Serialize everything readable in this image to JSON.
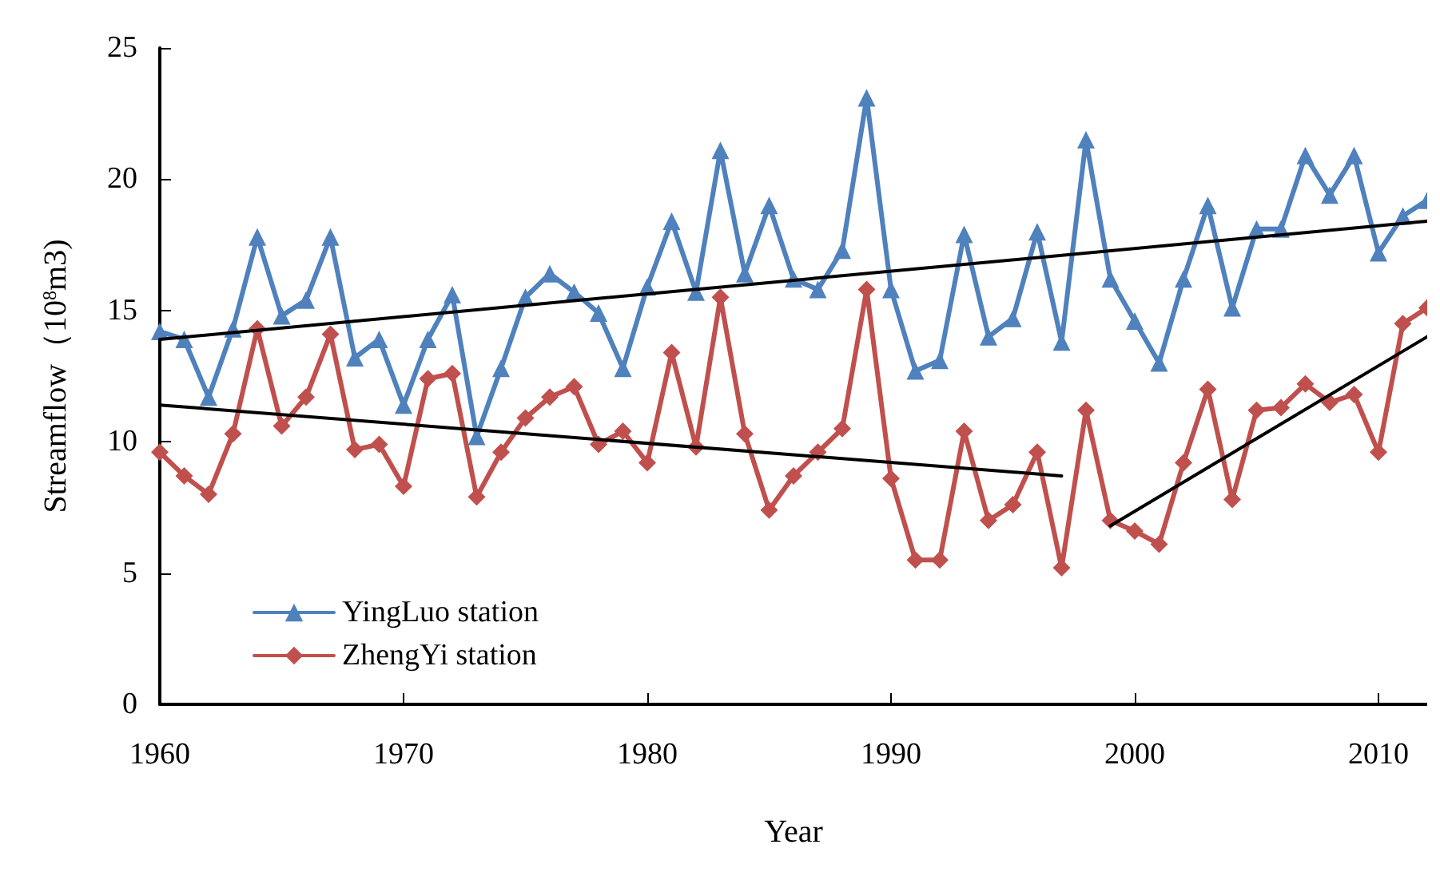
{
  "chart_data": {
    "type": "line",
    "xlabel": "Year",
    "ylabel": "Streamflow（10$^{8}$m3)",
    "x": [
      1960,
      1961,
      1962,
      1963,
      1964,
      1965,
      1966,
      1967,
      1968,
      1969,
      1970,
      1971,
      1972,
      1973,
      1974,
      1975,
      1976,
      1977,
      1978,
      1979,
      1980,
      1981,
      1982,
      1983,
      1984,
      1985,
      1986,
      1987,
      1988,
      1989,
      1990,
      1991,
      1992,
      1993,
      1994,
      1995,
      1996,
      1997,
      1998,
      1999,
      2000,
      2001,
      2002,
      2003,
      2004,
      2005,
      2006,
      2007,
      2008,
      2009,
      2010,
      2011,
      2012
    ],
    "series": [
      {
        "name": "YingLuo station",
        "color": "#4f81bd",
        "marker": "triangle",
        "values": [
          14.2,
          13.9,
          11.7,
          14.3,
          17.8,
          14.8,
          15.4,
          17.8,
          13.2,
          13.9,
          11.4,
          13.9,
          15.6,
          10.2,
          12.8,
          15.5,
          16.4,
          15.7,
          14.9,
          12.8,
          15.9,
          18.4,
          15.7,
          21.1,
          16.4,
          19.0,
          16.2,
          15.8,
          17.3,
          23.1,
          15.8,
          12.7,
          13.1,
          17.9,
          14.0,
          14.7,
          18.0,
          13.8,
          21.5,
          16.2,
          14.6,
          13.0,
          16.2,
          19.0,
          15.1,
          18.1,
          18.1,
          20.9,
          19.4,
          20.9,
          17.2,
          18.6,
          19.2
        ]
      },
      {
        "name": "ZhengYi station",
        "color": "#c0504d",
        "marker": "diamond",
        "values": [
          9.6,
          8.7,
          8.0,
          10.3,
          14.3,
          10.6,
          11.7,
          14.1,
          9.7,
          9.9,
          8.3,
          12.4,
          12.6,
          7.9,
          9.6,
          10.9,
          11.7,
          12.1,
          9.9,
          10.4,
          9.2,
          13.4,
          9.8,
          15.5,
          10.3,
          7.4,
          8.7,
          9.6,
          10.5,
          15.8,
          8.6,
          5.5,
          5.5,
          10.4,
          7.0,
          7.6,
          9.6,
          5.2,
          11.2,
          7.0,
          6.6,
          6.1,
          9.2,
          12.0,
          7.8,
          11.2,
          11.3,
          12.2,
          11.5,
          11.8,
          9.6,
          14.5,
          15.1
        ]
      },
      {
        "type": "line",
        "color": "#000000",
        "marker": "none",
        "x": [
          1960,
          2012
        ],
        "values": [
          13.9,
          18.4
        ]
      },
      {
        "type": "line",
        "color": "#000000",
        "marker": "none",
        "x": [
          1960,
          1997
        ],
        "values": [
          11.4,
          8.7
        ]
      },
      {
        "type": "line",
        "color": "#000000",
        "marker": "none",
        "x": [
          1999,
          2012
        ],
        "values": [
          6.8,
          14.0
        ]
      }
    ],
    "xlim": [
      1960,
      2012
    ],
    "xticks": [
      1960,
      1970,
      1980,
      1990,
      2000,
      2010
    ],
    "ylim": [
      0,
      25
    ],
    "yticks": [
      0,
      5,
      10,
      15,
      20,
      25
    ],
    "grid": false,
    "legend": "bottom left"
  }
}
